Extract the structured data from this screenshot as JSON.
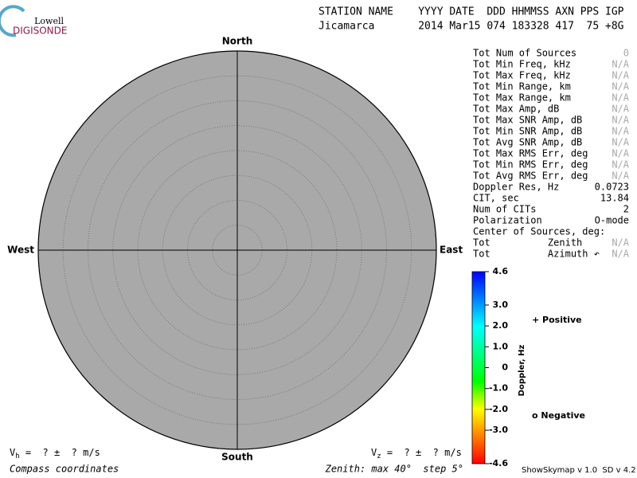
{
  "logo": {
    "line1": "Lowell",
    "line2": "DIGISONDE"
  },
  "header": {
    "labels": "STATION NAME    YYYY DATE  DDD HHMMSS AXN PPS IGP",
    "values": "Jicamarca       2014 Mar15 074 183328 417  75 +8G"
  },
  "chart_data": {
    "type": "skymap",
    "north": "North",
    "south": "South",
    "east": "East",
    "west": "West",
    "rlim": [
      0,
      40
    ],
    "rticks": [
      5,
      10,
      15,
      20,
      25,
      30,
      35,
      40
    ],
    "zenith_label": "Zenith: max 40°  step 5°",
    "coords_label": "Compass coordinates",
    "colorbar": {
      "label": "Doppler, Hz",
      "lim": [
        -4.6,
        4.6
      ],
      "ticks": [
        4.6,
        {
          "value": 3,
          "label": "3.0"
        },
        {
          "value": 2,
          "label": "2.0"
        },
        {
          "value": 1,
          "label": "1.0"
        },
        0,
        {
          "value": -1,
          "label": "-1.0"
        },
        {
          "value": -2,
          "label": "-2.0"
        },
        {
          "value": -3,
          "label": "-3.0"
        },
        -4.6
      ],
      "colors": [
        "#0000ff",
        "#0080ff",
        "#00ffff",
        "#00ff80",
        "#00ff00",
        "#ffff00",
        "#ff8000",
        "#ff0000"
      ]
    },
    "legend": [
      {
        "name": "+ Positive",
        "color": "#0000c0"
      },
      {
        "name": "o Negative",
        "color": "#d00000"
      }
    ]
  },
  "stats": [
    {
      "label": "Tot Num of Sources",
      "value": 0
    },
    {
      "label": "Tot Min Freq, kHz",
      "value": "N/A"
    },
    {
      "label": "Tot Max Freq, kHz",
      "value": "N/A"
    },
    {
      "label": "Tot Min Range, km",
      "value": "N/A"
    },
    {
      "label": "Tot Max Range, km",
      "value": "N/A"
    },
    {
      "label": "Tot Max Amp, dB",
      "value": "N/A"
    },
    {
      "label": "Tot Max SNR Amp, dB",
      "value": "N/A"
    },
    {
      "label": "Tot Min SNR Amp, dB",
      "value": "N/A"
    },
    {
      "label": "Tot Avg SNR Amp, dB",
      "value": "N/A"
    },
    {
      "label": "Tot Max RMS Err, deg",
      "value": "N/A"
    },
    {
      "label": "Tot Min RMS Err, deg",
      "value": "N/A"
    },
    {
      "label": "Tot Avg RMS Err, deg",
      "value": "N/A"
    },
    {
      "label": "Doppler Res, Hz",
      "value": 0.0723
    },
    {
      "label": "CIT, sec",
      "value": 13.84
    },
    {
      "label": "Num of CITs",
      "value": 2
    },
    {
      "label": "Polarization",
      "value": "O-mode"
    },
    {
      "label": "Center of Sources, deg:"
    },
    {
      "label": "Tot          Zenith",
      "value": "N/A"
    },
    {
      "label": "Tot          Azimuth ↶",
      "value": "N/A"
    }
  ],
  "velocity": {
    "vh": "V",
    "vh_sub": "h",
    "vh_text": " =  ? ±  ? m/s",
    "vz": "V",
    "vz_sub": "z",
    "vz_text": " =  ? ±  ? m/s"
  },
  "version": "ShowSkymap v 1.0  SD v 4.2"
}
